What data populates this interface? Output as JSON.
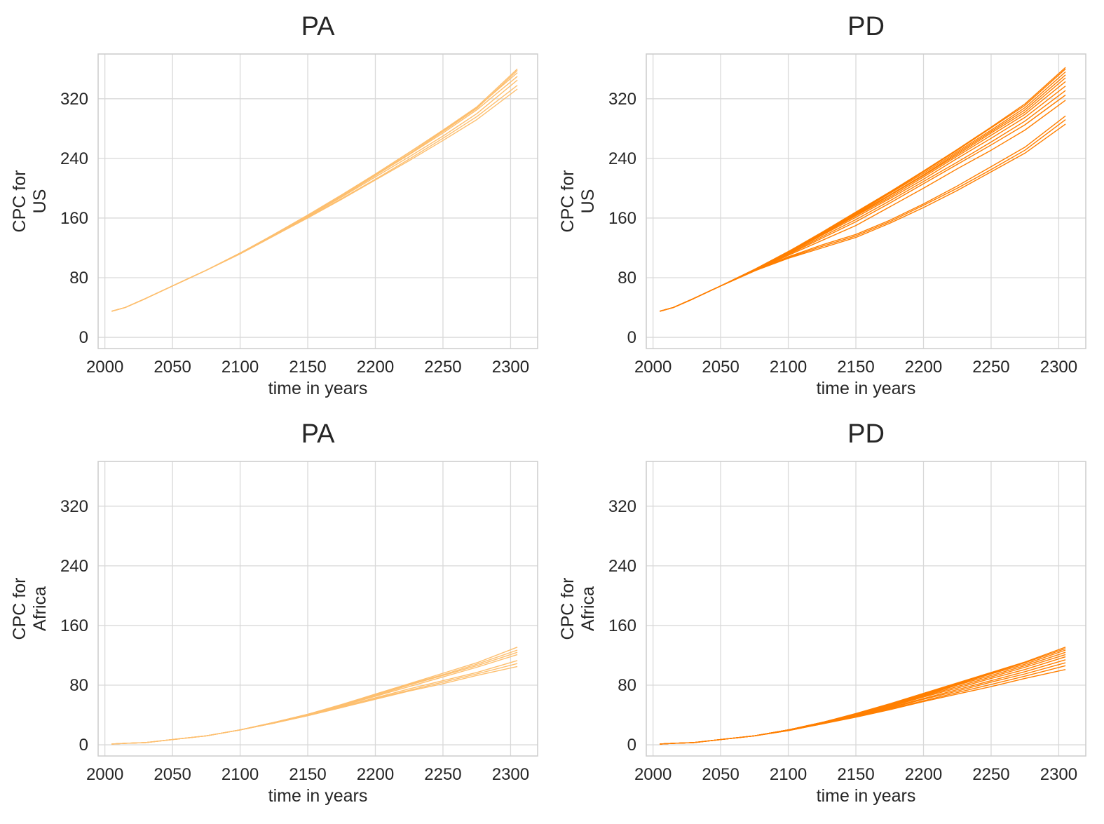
{
  "figure": {
    "rows": 2,
    "cols": 2
  },
  "chart_data": [
    {
      "type": "line",
      "title": "PA",
      "xlabel": "time in years",
      "ylabel": [
        "CPC for",
        "US"
      ],
      "xlim": [
        1995,
        2320
      ],
      "ylim": [
        -15,
        380
      ],
      "xticks": [
        2000,
        2050,
        2100,
        2150,
        2200,
        2250,
        2300
      ],
      "yticks": [
        0,
        80,
        160,
        240,
        320
      ],
      "grid": true,
      "color": "#fdbf6f",
      "x": [
        2005,
        2015,
        2030,
        2050,
        2075,
        2100,
        2125,
        2150,
        2175,
        2200,
        2225,
        2250,
        2275,
        2305
      ],
      "series": [
        {
          "values": [
            35,
            40,
            52,
            69,
            90,
            113,
            138,
            164,
            191,
            219,
            248,
            278,
            309,
            360
          ]
        },
        {
          "values": [
            35,
            40,
            52,
            69,
            90,
            113,
            138,
            164,
            191,
            219,
            248,
            277,
            308,
            355
          ]
        },
        {
          "values": [
            35,
            40,
            52,
            69,
            90,
            113,
            137,
            163,
            189,
            217,
            245,
            274,
            305,
            350
          ]
        },
        {
          "values": [
            35,
            40,
            52,
            69,
            90,
            113,
            137,
            162,
            188,
            215,
            242,
            270,
            300,
            345
          ]
        },
        {
          "values": [
            35,
            40,
            52,
            69,
            90,
            112,
            136,
            161,
            186,
            212,
            239,
            267,
            296,
            338
          ]
        },
        {
          "values": [
            35,
            40,
            52,
            69,
            90,
            112,
            136,
            160,
            185,
            211,
            237,
            264,
            292,
            333
          ]
        },
        {
          "values": [
            35,
            40,
            52,
            69,
            90,
            113,
            137,
            163,
            190,
            218,
            246,
            276,
            307,
            358
          ]
        }
      ]
    },
    {
      "type": "line",
      "title": "PD",
      "xlabel": "time in years",
      "ylabel": [
        "CPC for",
        "US"
      ],
      "xlim": [
        1995,
        2320
      ],
      "ylim": [
        -15,
        380
      ],
      "xticks": [
        2000,
        2050,
        2100,
        2150,
        2200,
        2250,
        2300
      ],
      "yticks": [
        0,
        80,
        160,
        240,
        320
      ],
      "grid": true,
      "color": "#ff7f00",
      "x": [
        2005,
        2015,
        2030,
        2050,
        2075,
        2100,
        2125,
        2150,
        2175,
        2200,
        2225,
        2250,
        2275,
        2305
      ],
      "series": [
        {
          "values": [
            35,
            40,
            52,
            69,
            91,
            115,
            140,
            167,
            194,
            222,
            251,
            281,
            311,
            360
          ]
        },
        {
          "values": [
            35,
            40,
            52,
            69,
            91,
            115,
            140,
            166,
            193,
            220,
            249,
            278,
            308,
            356
          ]
        },
        {
          "values": [
            35,
            40,
            52,
            69,
            91,
            114,
            139,
            165,
            191,
            218,
            247,
            276,
            305,
            352
          ]
        },
        {
          "values": [
            35,
            40,
            52,
            69,
            90,
            114,
            139,
            164,
            190,
            217,
            245,
            274,
            302,
            348
          ]
        },
        {
          "values": [
            35,
            40,
            52,
            69,
            90,
            113,
            138,
            163,
            188,
            215,
            243,
            271,
            299,
            343
          ]
        },
        {
          "values": [
            35,
            40,
            52,
            69,
            90,
            113,
            137,
            161,
            186,
            212,
            240,
            267,
            295,
            337
          ]
        },
        {
          "values": [
            35,
            40,
            52,
            69,
            90,
            112,
            135,
            158,
            183,
            209,
            235,
            262,
            290,
            331
          ]
        },
        {
          "values": [
            35,
            40,
            52,
            69,
            89,
            111,
            133,
            155,
            180,
            206,
            232,
            258,
            285,
            325
          ]
        },
        {
          "values": [
            35,
            40,
            52,
            69,
            89,
            110,
            130,
            150,
            175,
            200,
            226,
            251,
            278,
            318
          ]
        },
        {
          "values": [
            35,
            40,
            52,
            69,
            89,
            108,
            124,
            138,
            157,
            179,
            203,
            229,
            255,
            297
          ]
        },
        {
          "values": [
            35,
            40,
            52,
            69,
            89,
            107,
            122,
            136,
            155,
            177,
            200,
            225,
            251,
            292
          ]
        },
        {
          "values": [
            35,
            40,
            52,
            69,
            89,
            106,
            120,
            134,
            153,
            174,
            197,
            222,
            247,
            286
          ]
        },
        {
          "values": [
            35,
            40,
            52,
            69,
            91,
            115,
            141,
            168,
            195,
            223,
            252,
            282,
            313,
            362
          ]
        }
      ]
    },
    {
      "type": "line",
      "title": "PA",
      "xlabel": "time in years",
      "ylabel": [
        "CPC for",
        "Africa"
      ],
      "xlim": [
        1995,
        2320
      ],
      "ylim": [
        -15,
        380
      ],
      "xticks": [
        2000,
        2050,
        2100,
        2150,
        2200,
        2250,
        2300
      ],
      "yticks": [
        0,
        80,
        160,
        240,
        320
      ],
      "grid": true,
      "color": "#fdbf6f",
      "x": [
        2005,
        2015,
        2030,
        2050,
        2075,
        2100,
        2125,
        2150,
        2175,
        2200,
        2225,
        2250,
        2275,
        2305
      ],
      "series": [
        {
          "values": [
            1,
            2,
            3,
            7,
            12,
            20,
            30,
            41,
            54,
            68,
            82,
            96,
            110,
            131
          ]
        },
        {
          "values": [
            1,
            2,
            3,
            7,
            12,
            20,
            30,
            41,
            53,
            67,
            81,
            94,
            108,
            127
          ]
        },
        {
          "values": [
            1,
            2,
            3,
            7,
            12,
            20,
            30,
            41,
            53,
            66,
            80,
            93,
            106,
            124
          ]
        },
        {
          "values": [
            1,
            2,
            3,
            7,
            12,
            20,
            30,
            40,
            52,
            65,
            78,
            91,
            104,
            121
          ]
        },
        {
          "values": [
            1,
            2,
            3,
            7,
            12,
            20,
            29,
            40,
            51,
            63,
            75,
            86,
            97,
            113
          ]
        },
        {
          "values": [
            1,
            2,
            3,
            7,
            12,
            20,
            29,
            39,
            50,
            62,
            73,
            84,
            95,
            109
          ]
        },
        {
          "values": [
            1,
            2,
            3,
            7,
            12,
            20,
            29,
            39,
            50,
            61,
            72,
            82,
            93,
            105
          ]
        }
      ]
    },
    {
      "type": "line",
      "title": "PD",
      "xlabel": "time in years",
      "ylabel": [
        "CPC for",
        "Africa"
      ],
      "xlim": [
        1995,
        2320
      ],
      "ylim": [
        -15,
        380
      ],
      "xticks": [
        2000,
        2050,
        2100,
        2150,
        2200,
        2250,
        2300
      ],
      "yticks": [
        0,
        80,
        160,
        240,
        320
      ],
      "grid": true,
      "color": "#ff7f00",
      "x": [
        2005,
        2015,
        2030,
        2050,
        2075,
        2100,
        2125,
        2150,
        2175,
        2200,
        2225,
        2250,
        2275,
        2305
      ],
      "series": [
        {
          "values": [
            1,
            2,
            3,
            7,
            12,
            20,
            30,
            42,
            55,
            69,
            83,
            97,
            111,
            131
          ]
        },
        {
          "values": [
            1,
            2,
            3,
            7,
            12,
            20,
            30,
            41,
            54,
            68,
            82,
            96,
            110,
            129
          ]
        },
        {
          "values": [
            1,
            2,
            3,
            7,
            12,
            20,
            30,
            41,
            54,
            67,
            81,
            95,
            108,
            127
          ]
        },
        {
          "values": [
            1,
            2,
            3,
            7,
            12,
            20,
            30,
            41,
            53,
            66,
            80,
            93,
            106,
            124
          ]
        },
        {
          "values": [
            1,
            2,
            3,
            7,
            12,
            20,
            30,
            40,
            52,
            65,
            78,
            91,
            104,
            121
          ]
        },
        {
          "values": [
            1,
            2,
            3,
            7,
            12,
            20,
            29,
            40,
            51,
            64,
            76,
            89,
            101,
            118
          ]
        },
        {
          "values": [
            1,
            2,
            3,
            7,
            12,
            20,
            29,
            39,
            50,
            62,
            74,
            86,
            98,
            114
          ]
        },
        {
          "values": [
            1,
            2,
            3,
            7,
            12,
            19,
            29,
            39,
            49,
            61,
            72,
            84,
            95,
            110
          ]
        },
        {
          "values": [
            1,
            2,
            3,
            7,
            12,
            19,
            28,
            38,
            48,
            59,
            70,
            81,
            92,
            106
          ]
        },
        {
          "values": [
            1,
            2,
            3,
            7,
            12,
            19,
            28,
            37,
            47,
            58,
            68,
            78,
            89,
            101
          ]
        }
      ]
    }
  ]
}
